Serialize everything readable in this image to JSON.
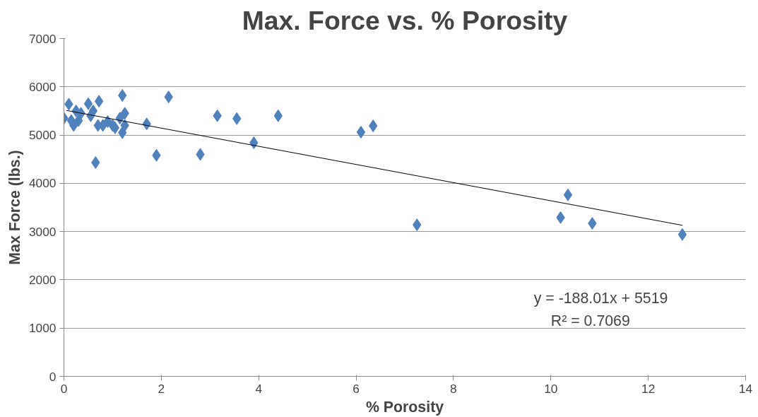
{
  "chart_data": {
    "type": "scatter",
    "title": "Max. Force vs. % Porosity",
    "xlabel": "% Porosity",
    "ylabel": "Max Force (lbs.)",
    "xlim": [
      0,
      14
    ],
    "ylim": [
      0,
      7000
    ],
    "xticks": [
      0,
      2,
      4,
      6,
      8,
      10,
      12,
      14
    ],
    "yticks": [
      0,
      1000,
      2000,
      3000,
      4000,
      5000,
      6000,
      7000
    ],
    "grid": "y",
    "marker": "diamond",
    "annotations": [
      "y = -188.01x + 5519",
      "R² = 0.7069"
    ],
    "series": [
      {
        "color": "#4f81bd",
        "x": [
          0.0,
          0.1,
          0.15,
          0.2,
          0.25,
          0.3,
          0.35,
          0.5,
          0.55,
          0.6,
          0.65,
          0.7,
          0.72,
          0.8,
          0.9,
          1.0,
          1.05,
          1.15,
          1.2,
          1.2,
          1.25,
          1.25,
          1.7,
          1.9,
          2.15,
          2.8,
          3.15,
          3.55,
          3.9,
          4.4,
          6.1,
          6.35,
          7.25,
          10.2,
          10.35,
          10.85,
          12.7
        ],
        "values": [
          5350,
          5640,
          5300,
          5200,
          5500,
          5300,
          5450,
          5650,
          5400,
          5500,
          4430,
          5200,
          5700,
          5200,
          5280,
          5200,
          5150,
          5350,
          5820,
          5050,
          5450,
          5200,
          5230,
          4580,
          5790,
          4600,
          5400,
          5340,
          4840,
          5400,
          5060,
          5190,
          3140,
          3290,
          3760,
          3170,
          2940
        ]
      },
      {
        "type": "line",
        "marker": "none",
        "color": "#000000",
        "x": [
          0.05,
          12.7
        ],
        "values": [
          5510,
          3130
        ]
      }
    ]
  }
}
